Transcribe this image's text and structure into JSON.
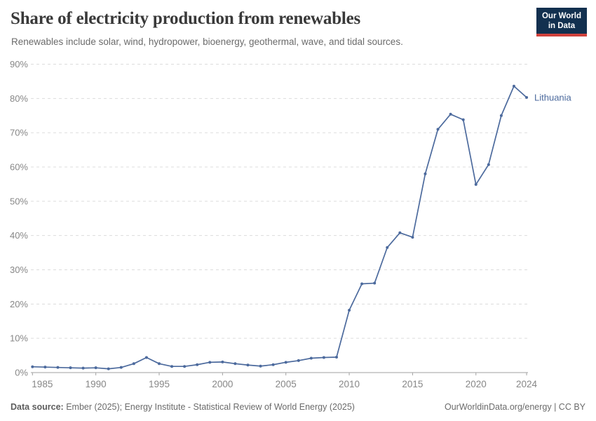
{
  "header": {
    "title": "Share of electricity production from renewables",
    "subtitle": "Renewables include solar, wind, hydropower, bioenergy, geothermal, wave, and tidal sources."
  },
  "logo": {
    "line1": "Our World",
    "line2": "in Data",
    "bg_color": "#12304f",
    "accent_color": "#d0413c"
  },
  "chart_data": {
    "type": "line",
    "title": "Share of electricity production from renewables",
    "x": [
      1985,
      1986,
      1987,
      1988,
      1989,
      1990,
      1991,
      1992,
      1993,
      1994,
      1995,
      1996,
      1997,
      1998,
      1999,
      2000,
      2001,
      2002,
      2003,
      2004,
      2005,
      2006,
      2007,
      2008,
      2009,
      2010,
      2011,
      2012,
      2013,
      2014,
      2015,
      2016,
      2017,
      2018,
      2019,
      2020,
      2021,
      2022,
      2023,
      2024
    ],
    "series": [
      {
        "name": "Lithuania",
        "color": "#4c6a9d",
        "values": [
          1.7,
          1.6,
          1.5,
          1.4,
          1.3,
          1.4,
          1.1,
          1.5,
          2.6,
          4.4,
          2.6,
          1.8,
          1.8,
          2.3,
          3.0,
          3.1,
          2.6,
          2.2,
          1.9,
          2.3,
          3.0,
          3.5,
          4.2,
          4.4,
          4.5,
          18.2,
          25.9,
          26.1,
          36.5,
          40.8,
          39.5,
          58.0,
          71.0,
          75.4,
          73.8,
          54.9,
          60.7,
          75.0,
          83.6,
          80.3
        ]
      }
    ],
    "xlabel": "",
    "ylabel": "",
    "ylim": [
      0,
      90
    ],
    "yticks": [
      0,
      10,
      20,
      30,
      40,
      50,
      60,
      70,
      80,
      90
    ],
    "ytick_suffix": "%",
    "xticks": [
      1985,
      1990,
      1995,
      2000,
      2005,
      2010,
      2015,
      2020,
      2024
    ],
    "grid": "horizontal-dashed",
    "legend": "inline-end-label",
    "marker": "dot"
  },
  "footer": {
    "source_label": "Data source:",
    "source_text": " Ember (2025); Energy Institute - Statistical Review of World Energy (2025)",
    "right_text": "OurWorldinData.org/energy | CC BY"
  }
}
